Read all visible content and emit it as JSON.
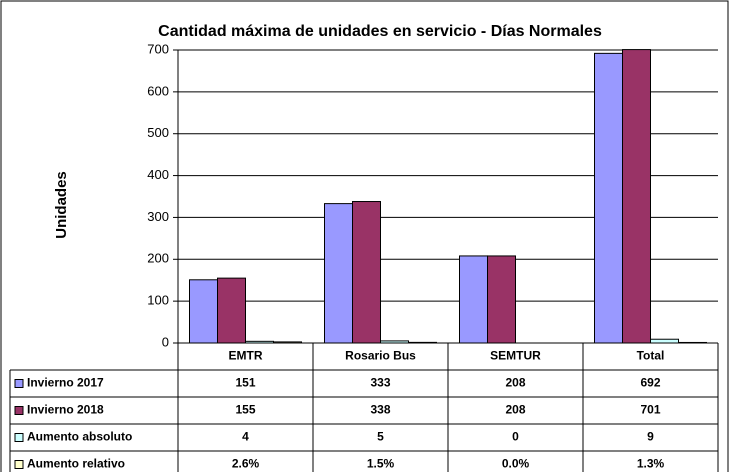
{
  "chart_data": {
    "type": "bar",
    "title": "Cantidad máxima de unidades en servicio - Días Normales",
    "y_label": "Unidades",
    "categories": [
      "EMTR",
      "Rosario Bus",
      "SEMTUR",
      "Total"
    ],
    "series": [
      {
        "name": "Invierno 2017",
        "color": "#9999ff",
        "values": [
          151,
          333,
          208,
          692
        ]
      },
      {
        "name": "Invierno 2018",
        "color": "#993366",
        "values": [
          155,
          338,
          208,
          701
        ]
      },
      {
        "name": "Aumento absoluto",
        "color": "#ccffff",
        "values": [
          4,
          5,
          0,
          9
        ]
      },
      {
        "name": "Aumento relativo",
        "color": "#ffffcc",
        "values": [
          2.6,
          1.5,
          0.0,
          1.3
        ],
        "value_labels": [
          "2.6%",
          "1.5%",
          "0.0%",
          "1.3%"
        ]
      }
    ],
    "ylim": [
      0,
      700
    ],
    "yticks": [
      0,
      100,
      200,
      300,
      400,
      500,
      600,
      700
    ],
    "grid": true
  }
}
